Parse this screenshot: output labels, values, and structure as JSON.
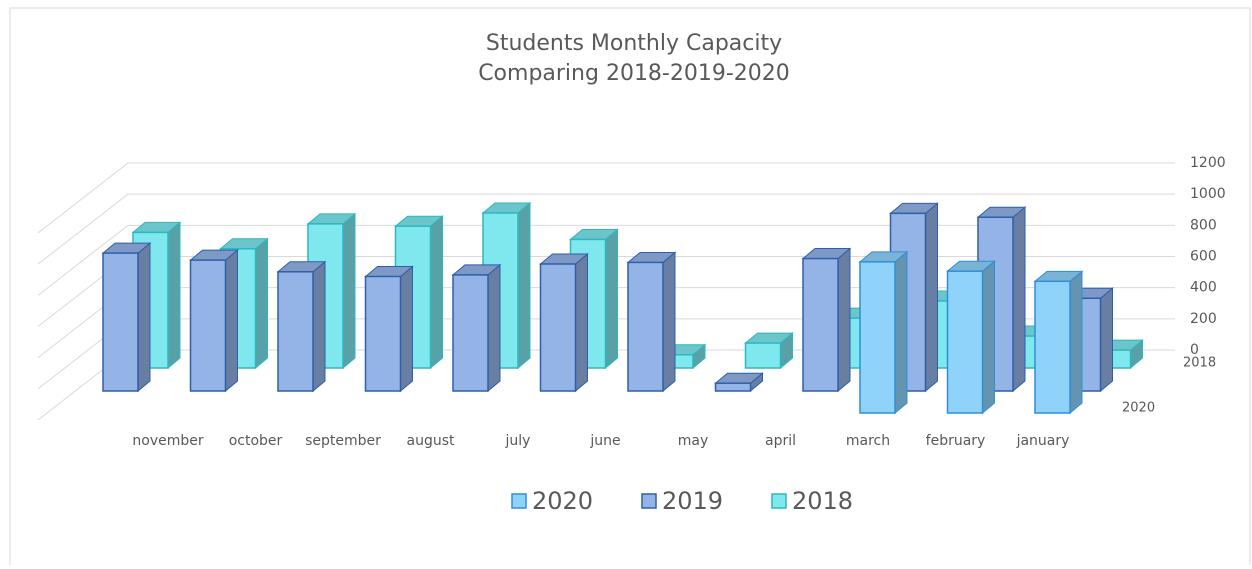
{
  "chart_data": {
    "type": "bar3d",
    "title": "Students Monthly Capacity",
    "subtitle": "Comparing 2018-2019-2020",
    "categories": [
      "november",
      "october",
      "september",
      "august",
      "july",
      "june",
      "may",
      "april",
      "march",
      "february",
      "january",
      null
    ],
    "series": [
      {
        "name": "2020",
        "color": "#8fd3fb",
        "values": [
          null,
          null,
          null,
          null,
          null,
          null,
          null,
          null,
          970,
          910,
          845,
          null
        ]
      },
      {
        "name": "2019",
        "color": "#94b4e8",
        "values": [
          885,
          840,
          765,
          735,
          745,
          815,
          825,
          50,
          850,
          1140,
          1115,
          595
        ]
      },
      {
        "name": "2018",
        "color": "#7ee8ee",
        "values": [
          870,
          765,
          925,
          910,
          995,
          825,
          85,
          160,
          320,
          430,
          205,
          115
        ]
      }
    ],
    "ylim": [
      0,
      1200
    ],
    "yticks": [
      0,
      200,
      400,
      600,
      800,
      1000,
      1200
    ],
    "grid": true,
    "legend": "bottom"
  }
}
